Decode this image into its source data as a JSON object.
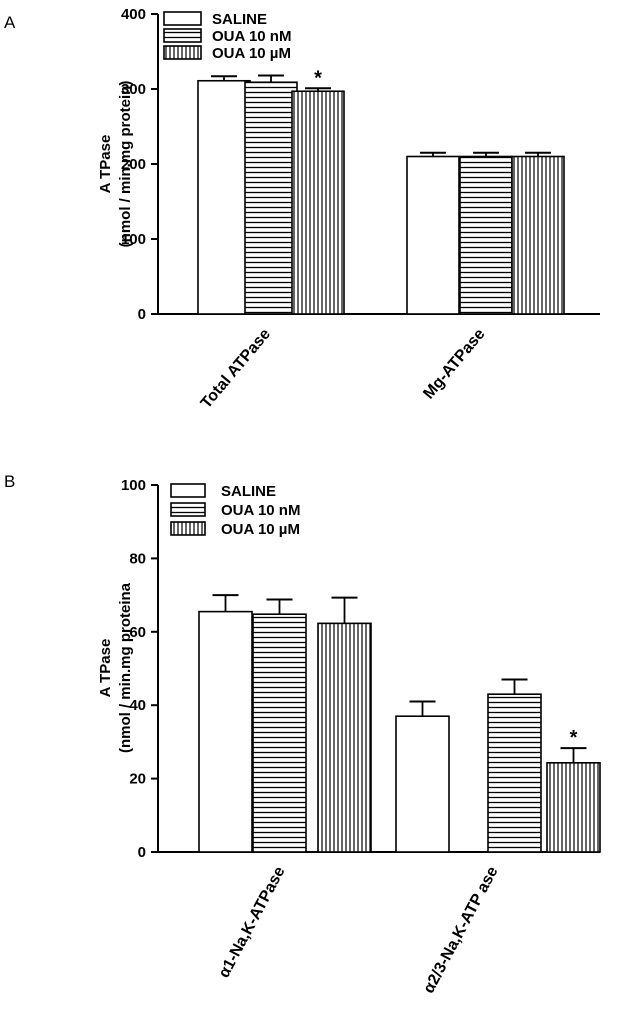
{
  "chart_data": [
    {
      "type": "bar",
      "panel_label": "A",
      "ylabel": [
        "A TPase",
        "(nmol / min.mg protein)"
      ],
      "ylim": [
        0,
        400
      ],
      "yticks": [
        0,
        100,
        200,
        300,
        400
      ],
      "categories": [
        "Total ATPase",
        "Mg-ATPase"
      ],
      "legend_position": "top",
      "series": [
        {
          "name": "SALINE",
          "pattern": "plain",
          "values": [
            311,
            210
          ],
          "errors": [
            6,
            5
          ]
        },
        {
          "name": "OUA 10 nM",
          "pattern": "horizontal",
          "values": [
            309,
            210
          ],
          "errors": [
            9,
            5
          ]
        },
        {
          "name": "OUA 10 µM",
          "pattern": "vertical",
          "values": [
            297,
            210
          ],
          "errors": [
            4,
            5
          ]
        }
      ],
      "annotations": [
        {
          "text": "*",
          "category": 0,
          "series": 2
        }
      ]
    },
    {
      "type": "bar",
      "panel_label": "B",
      "ylabel": [
        "A TPase",
        "(nmol / min.mg proteina"
      ],
      "ylim": [
        0,
        100
      ],
      "yticks": [
        0,
        20,
        40,
        60,
        80,
        100
      ],
      "categories": [
        "α1-Na,K-ATPase",
        "α2/3-Na,K-ATP ase"
      ],
      "legend_position": "top",
      "series": [
        {
          "name": "SALINE",
          "pattern": "plain",
          "values": [
            65.5,
            37
          ],
          "errors": [
            4.5,
            4
          ]
        },
        {
          "name": "OUA 10 nM",
          "pattern": "horizontal",
          "values": [
            64.8,
            43
          ],
          "errors": [
            4,
            4
          ]
        },
        {
          "name": "OUA 10 µM",
          "pattern": "vertical",
          "values": [
            62.3,
            24.3
          ],
          "errors": [
            7,
            4
          ]
        }
      ],
      "annotations": [
        {
          "text": "*",
          "category": 1,
          "series": 2
        }
      ]
    }
  ]
}
